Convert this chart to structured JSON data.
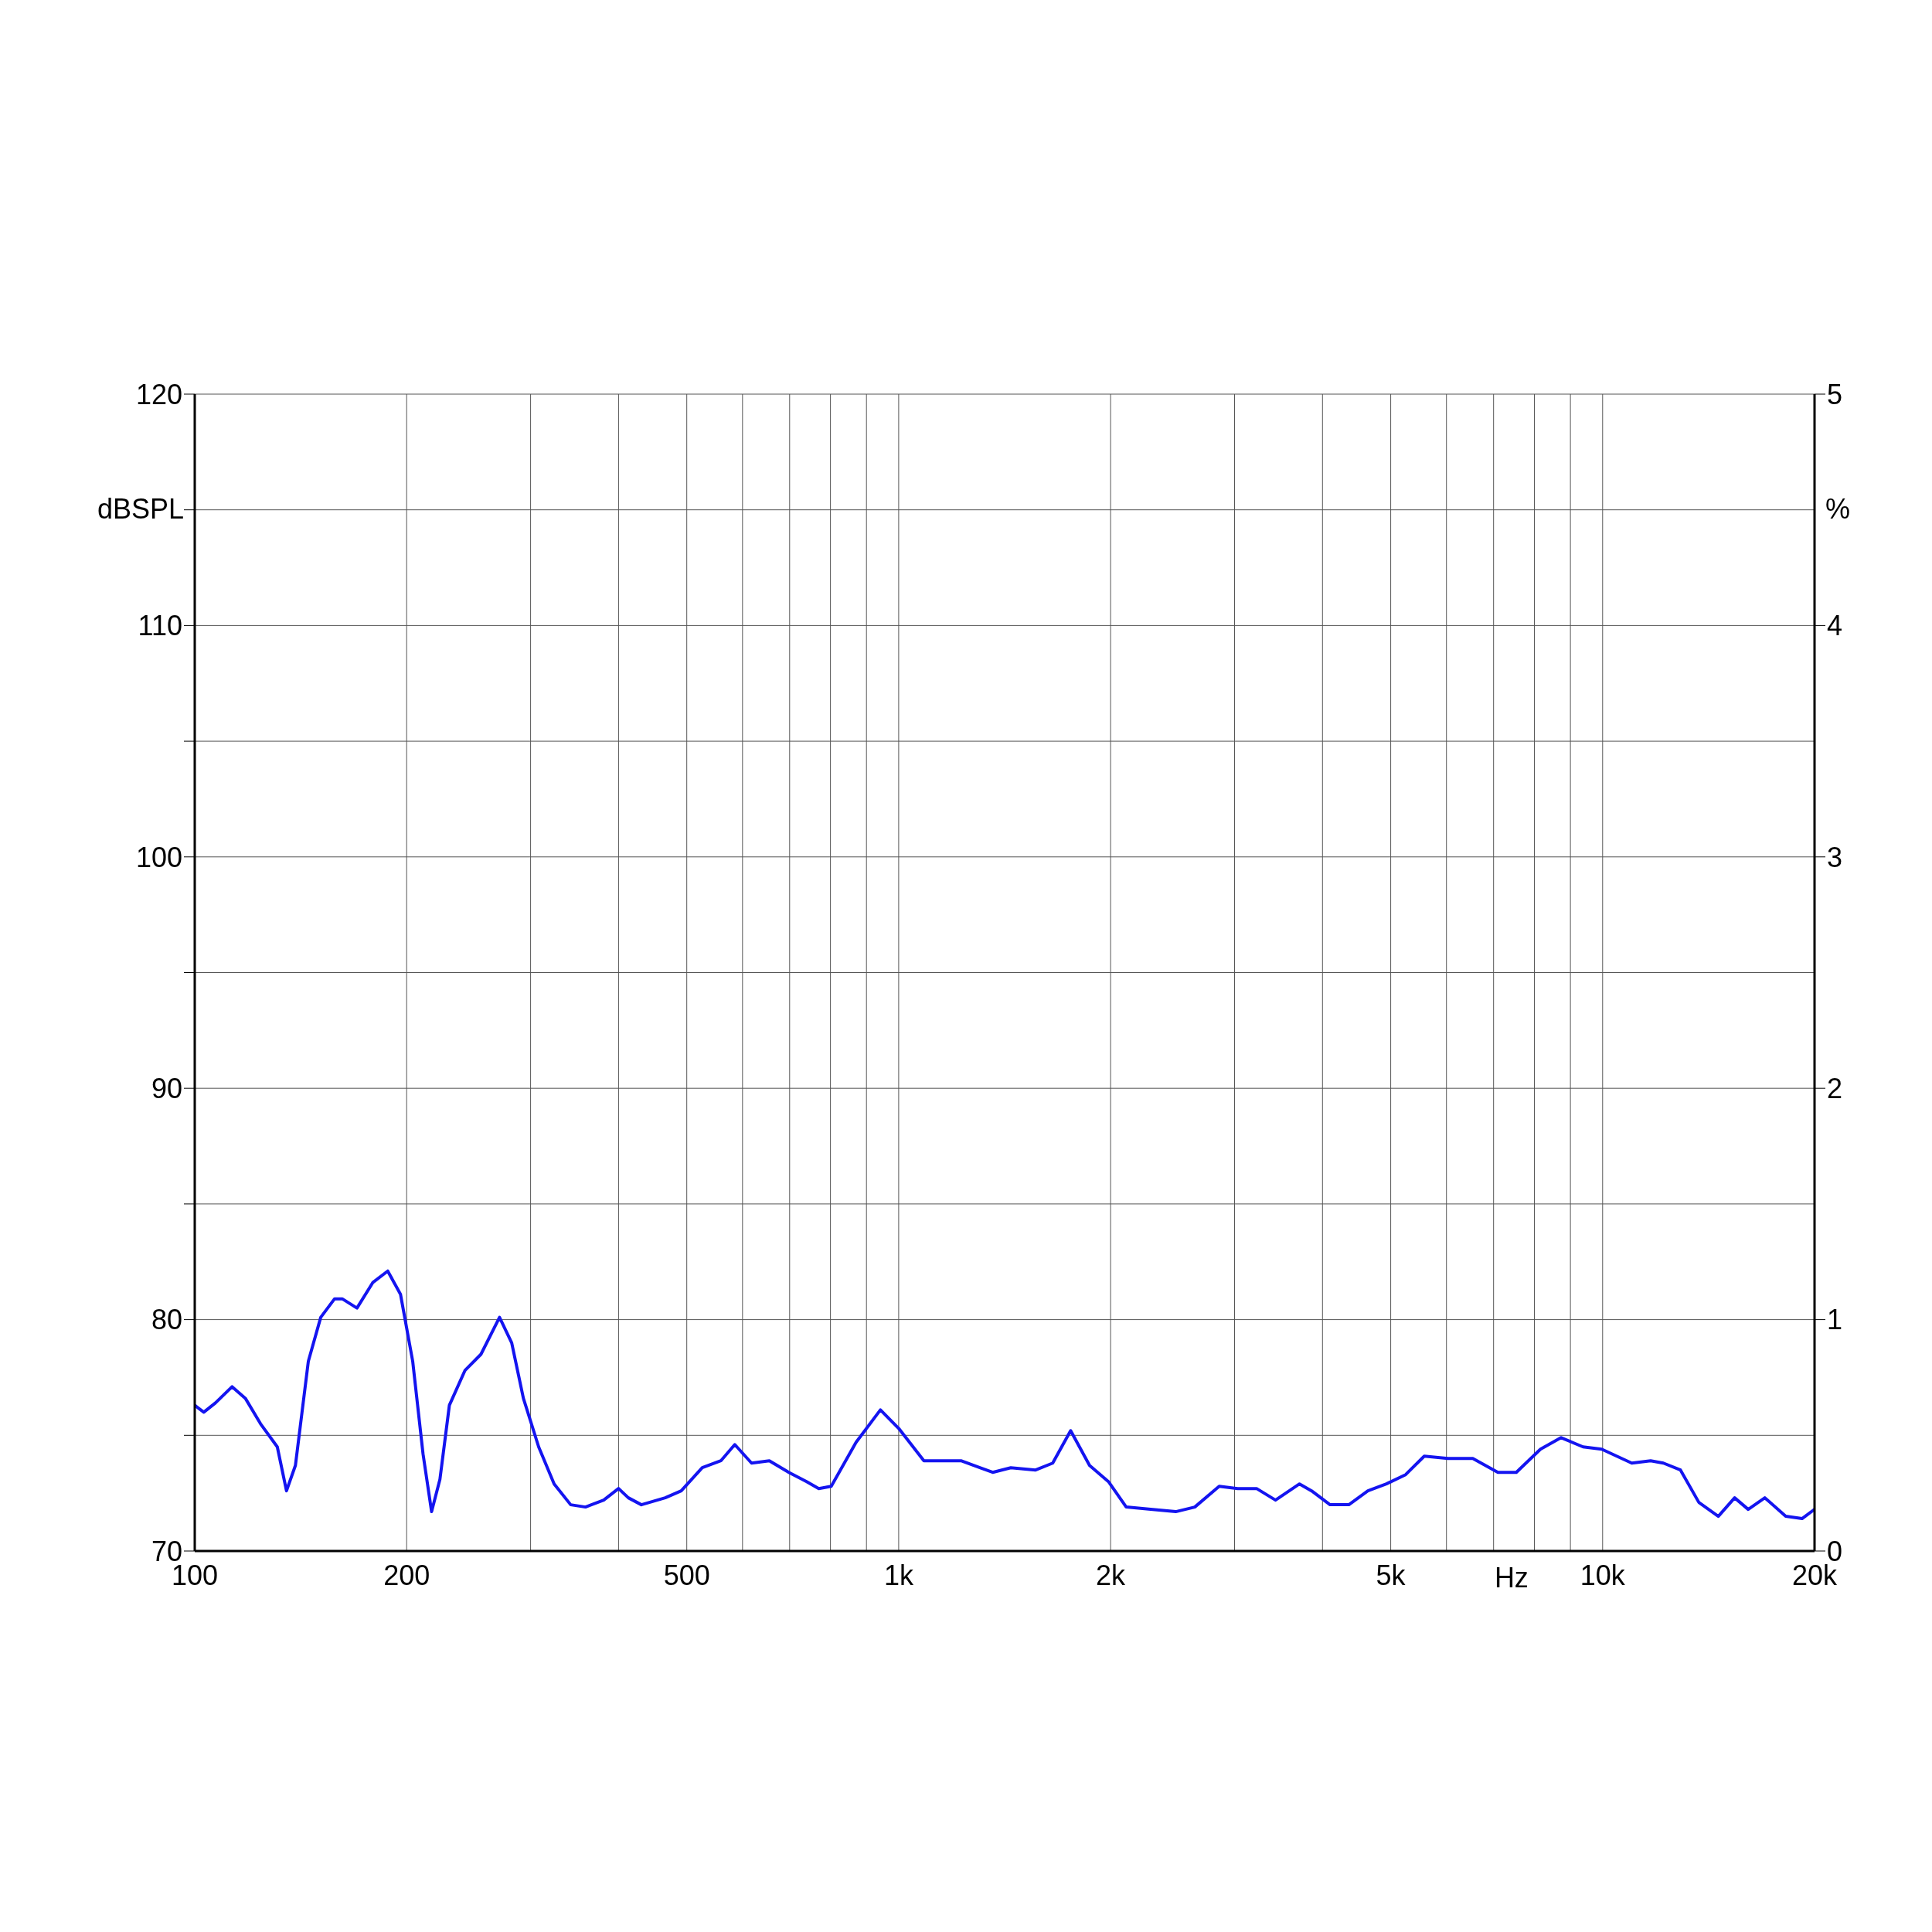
{
  "chart_data": {
    "type": "line",
    "xlabel": "Hz",
    "ylabel": "dBSPL",
    "y2label": "%",
    "log": "x",
    "grid": true,
    "legend": false,
    "marker": "none",
    "line_style": "solid",
    "xlim": [
      100,
      20000
    ],
    "xticks": [
      100,
      200,
      {
        "value": 300,
        "label": null
      },
      {
        "value": 400,
        "label": null
      },
      500,
      {
        "value": 600,
        "label": null
      },
      {
        "value": 700,
        "label": null
      },
      {
        "value": 800,
        "label": null
      },
      {
        "value": 900,
        "label": null
      },
      {
        "value": 1000,
        "label": "1k"
      },
      {
        "value": 2000,
        "label": "2k"
      },
      {
        "value": 3000,
        "label": null
      },
      {
        "value": 4000,
        "label": null
      },
      {
        "value": 5000,
        "label": "5k"
      },
      {
        "value": 6000,
        "label": null
      },
      {
        "value": 7000,
        "label": null
      },
      {
        "value": 8000,
        "label": null
      },
      {
        "value": 9000,
        "label": null
      },
      {
        "value": 10000,
        "label": "10k"
      },
      {
        "value": 20000,
        "label": "20k"
      }
    ],
    "ylim": [
      70,
      120
    ],
    "yticks": [
      70,
      {
        "value": 75,
        "label": null
      },
      80,
      {
        "value": 85,
        "label": null
      },
      90,
      {
        "value": 95,
        "label": null
      },
      100,
      {
        "value": 105,
        "label": null
      },
      110,
      {
        "value": 115,
        "label": null
      },
      120
    ],
    "y2lim": [
      0,
      5
    ],
    "y2ticks": [
      0,
      1,
      2,
      3,
      4,
      5
    ],
    "series": [
      {
        "color": "#1414f0",
        "x": [
          100,
          103,
          107,
          113,
          118,
          124,
          131,
          135,
          139,
          145,
          151,
          158,
          162,
          170,
          179,
          188,
          196,
          204,
          211,
          217,
          223,
          230,
          242,
          255,
          271,
          282,
          293,
          308,
          324,
          342,
          359,
          381,
          400,
          413,
          431,
          466,
          491,
          526,
          559,
          585,
          618,
          655,
          698,
          740,
          770,
          802,
          870,
          942,
          1000,
          1086,
          1177,
          1226,
          1360,
          1443,
          1565,
          1655,
          1755,
          1867,
          1986,
          2105,
          2280,
          2475,
          2634,
          2853,
          3032,
          3224,
          3430,
          3710,
          3860,
          4100,
          4360,
          4640,
          4930,
          5250,
          5580,
          6030,
          6540,
          7100,
          7540,
          8160,
          8730,
          9380,
          9970,
          11000,
          11700,
          12200,
          12900,
          13700,
          14600,
          15400,
          16100,
          17000,
          18200,
          19200,
          20000
        ],
        "values": [
          76.3,
          76.0,
          76.4,
          77.1,
          76.6,
          75.5,
          74.5,
          72.6,
          73.7,
          78.2,
          80.1,
          80.9,
          80.9,
          80.5,
          81.6,
          82.1,
          81.1,
          78.2,
          74.2,
          71.7,
          73.1,
          76.3,
          77.8,
          78.5,
          80.1,
          79.0,
          76.6,
          74.5,
          72.9,
          72.0,
          71.9,
          72.2,
          72.7,
          72.3,
          72.0,
          72.3,
          72.6,
          73.6,
          73.9,
          74.6,
          73.8,
          73.9,
          73.4,
          73.0,
          72.7,
          72.8,
          74.7,
          76.1,
          75.3,
          73.9,
          73.9,
          73.9,
          73.4,
          73.6,
          73.5,
          73.8,
          75.2,
          73.7,
          73.0,
          71.9,
          71.8,
          71.7,
          71.9,
          72.8,
          72.7,
          72.7,
          72.2,
          72.9,
          72.6,
          72.0,
          72.0,
          72.6,
          72.9,
          73.3,
          74.1,
          74.0,
          74.0,
          73.4,
          73.4,
          74.4,
          74.9,
          74.5,
          74.4,
          73.8,
          73.9,
          73.8,
          73.5,
          72.1,
          71.5,
          72.3,
          71.8,
          72.3,
          71.5,
          71.4,
          71.8
        ]
      }
    ]
  }
}
